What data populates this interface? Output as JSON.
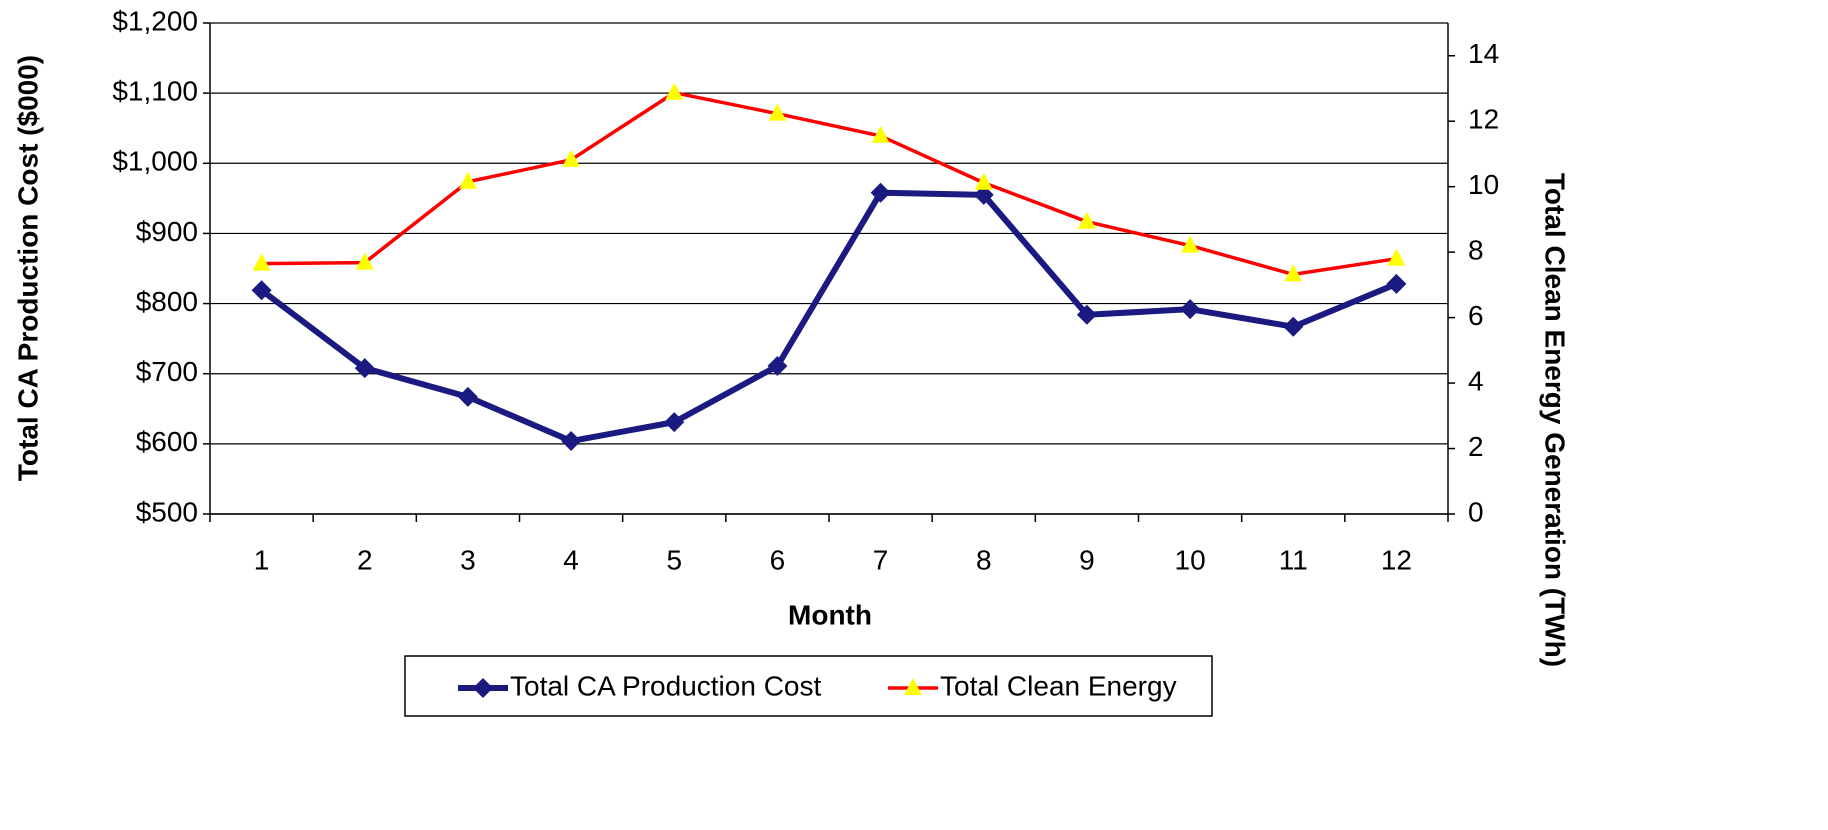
{
  "chart_data": {
    "type": "line",
    "x_label": "Month",
    "y_label": "Total CA Production Cost ($000)",
    "y2_label": "Total Clean Energy Generation (TWh)",
    "categories": [
      "1",
      "2",
      "3",
      "4",
      "5",
      "6",
      "7",
      "8",
      "9",
      "10",
      "11",
      "12"
    ],
    "series": [
      {
        "name": "Total CA Production Cost",
        "color": "#1a1a80",
        "marker": "diamond",
        "values": [
          819,
          708,
          667,
          604,
          631,
          711,
          958,
          955,
          784,
          792,
          767,
          828
        ]
      },
      {
        "name": "Total Clean Energy",
        "color": "#ff0000",
        "marker": "triangle",
        "marker_color": "#ffff00",
        "axis": "y2",
        "values": [
          7.65,
          7.68,
          10.15,
          10.82,
          12.87,
          12.23,
          11.55,
          10.12,
          8.93,
          8.2,
          7.32,
          7.8
        ]
      }
    ],
    "ylim": [
      500,
      1200
    ],
    "yticks": [
      {
        "value": 500,
        "label": "$500"
      },
      {
        "value": 600,
        "label": "$600"
      },
      {
        "value": 700,
        "label": "$700"
      },
      {
        "value": 800,
        "label": "$800"
      },
      {
        "value": 900,
        "label": "$900"
      },
      {
        "value": 1000,
        "label": "$1,000"
      },
      {
        "value": 1100,
        "label": "$1,100"
      },
      {
        "value": 1200,
        "label": "$1,200"
      }
    ],
    "y2lim": [
      0,
      15
    ],
    "y2ticks": [
      0,
      2,
      4,
      6,
      8,
      10,
      12,
      14
    ],
    "grid": true,
    "legend": "bottom"
  }
}
